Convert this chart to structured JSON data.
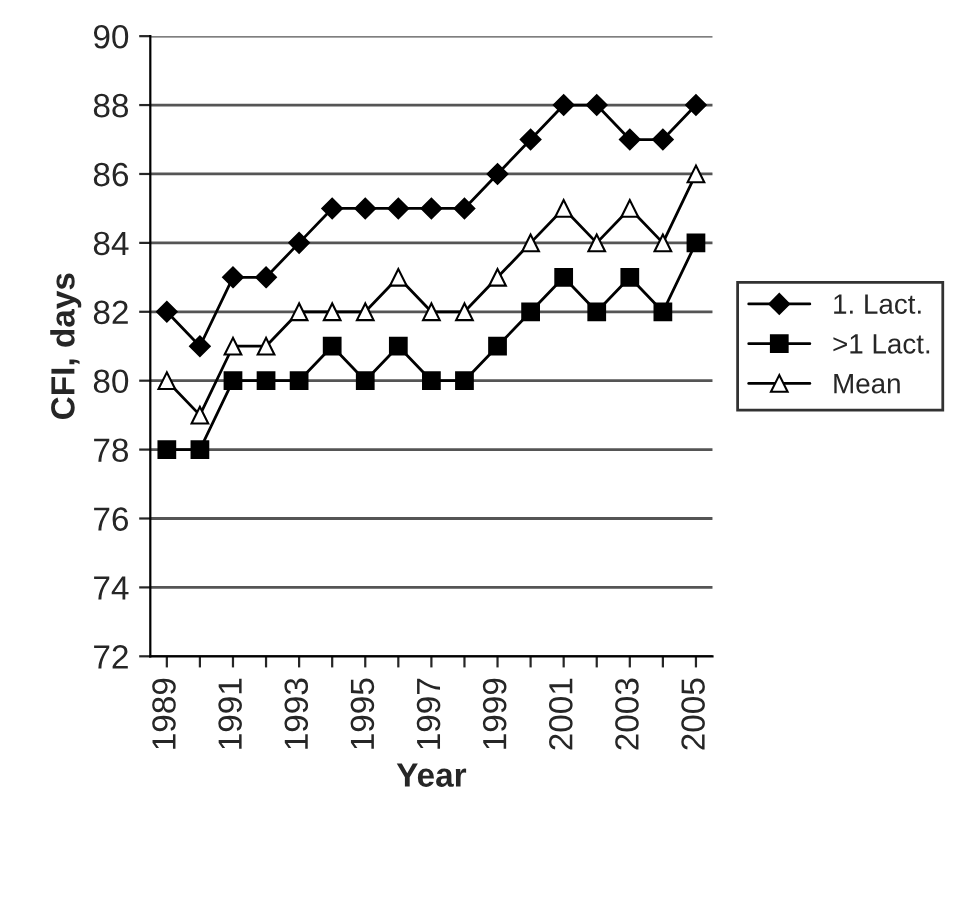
{
  "chart_data": {
    "type": "line",
    "xlabel": "Year",
    "ylabel": "CFI, days",
    "categories": [
      "1989",
      null,
      "1991",
      null,
      "1993",
      null,
      "1995",
      null,
      "1997",
      null,
      "1999",
      null,
      "2001",
      null,
      "2003",
      null,
      "2005"
    ],
    "series": [
      {
        "name": "1. Lact.",
        "color": "#000000",
        "marker": "diamond",
        "values": [
          82,
          81,
          83,
          83,
          84,
          85,
          85,
          85,
          85,
          85,
          86,
          87,
          88,
          88,
          87,
          87,
          88
        ]
      },
      {
        "name": ">1 Lact.",
        "color": "#000000",
        "marker": "square",
        "values": [
          78,
          78,
          80,
          80,
          80,
          81,
          80,
          81,
          80,
          80,
          81,
          82,
          83,
          82,
          83,
          82,
          84
        ]
      },
      {
        "name": "Mean",
        "color": "#000000",
        "marker": "triangle",
        "values": [
          80,
          79,
          81,
          81,
          82,
          82,
          82,
          83,
          82,
          82,
          83,
          84,
          85,
          84,
          85,
          84,
          86
        ]
      }
    ],
    "ylim": [
      72,
      90
    ],
    "yticks": [
      72,
      74,
      76,
      78,
      80,
      82,
      84,
      86,
      88,
      90
    ],
    "grid": "y",
    "legend": "right",
    "line_style": "solid"
  }
}
